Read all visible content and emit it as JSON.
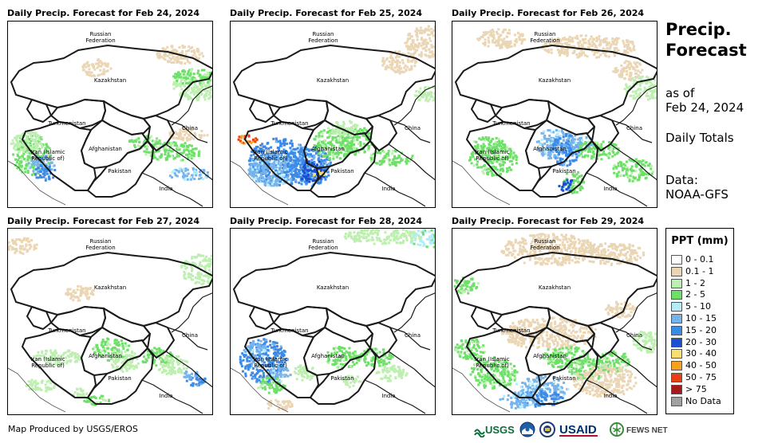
{
  "panels": [
    {
      "title": "Daily Precip. Forecast for Feb 24, 2024"
    },
    {
      "title": "Daily Precip. Forecast for Feb 25, 2024"
    },
    {
      "title": "Daily Precip. Forecast for Feb 26, 2024"
    },
    {
      "title": "Daily Precip. Forecast for Feb 27, 2024"
    },
    {
      "title": "Daily Precip. Forecast for Feb 28, 2024"
    },
    {
      "title": "Daily Precip. Forecast for Feb 29, 2024"
    }
  ],
  "map_labels": {
    "russia": "Russian",
    "federation": "Federation",
    "kazakhstan": "Kazakhstan",
    "turkmenistan": "Turkmenistan",
    "china": "China",
    "iran": "Iran  (Islamic",
    "iran2": "Republic of)",
    "afghanistan": "Afghanistan",
    "pakistan": "Pakistan",
    "india": "India"
  },
  "sidebar": {
    "title_line1": "Precip.",
    "title_line2": "Forecast",
    "asof_line1": "as of",
    "asof_line2": "Feb 24, 2024",
    "daily": "Daily Totals",
    "data_line1": "Data:",
    "data_line2": "NOAA-GFS"
  },
  "legend": {
    "title": "PPT (mm)",
    "items": [
      {
        "label": "0 - 0.1",
        "color": "#ffffff"
      },
      {
        "label": "0.1 - 1",
        "color": "#ead6b4"
      },
      {
        "label": "1 - 2",
        "color": "#bdf0b0"
      },
      {
        "label": "2 - 5",
        "color": "#6ee06a"
      },
      {
        "label": "5 - 10",
        "color": "#b4ecf8"
      },
      {
        "label": "10 - 15",
        "color": "#78b4ec"
      },
      {
        "label": "15 - 20",
        "color": "#3c8ae6"
      },
      {
        "label": "20 - 30",
        "color": "#1a4fd0"
      },
      {
        "label": "30 - 40",
        "color": "#f8e070"
      },
      {
        "label": "40 - 50",
        "color": "#f8a020"
      },
      {
        "label": "50 - 75",
        "color": "#e84010"
      },
      {
        "label": "> 75",
        "color": "#a81818"
      },
      {
        "label": "No Data",
        "color": "#a0a0a0"
      }
    ]
  },
  "credit": "Map Produced by USGS/EROS",
  "logos": {
    "usgs": "USGS",
    "usaid": "USAID",
    "fewsnet": "FEWS NET"
  }
}
